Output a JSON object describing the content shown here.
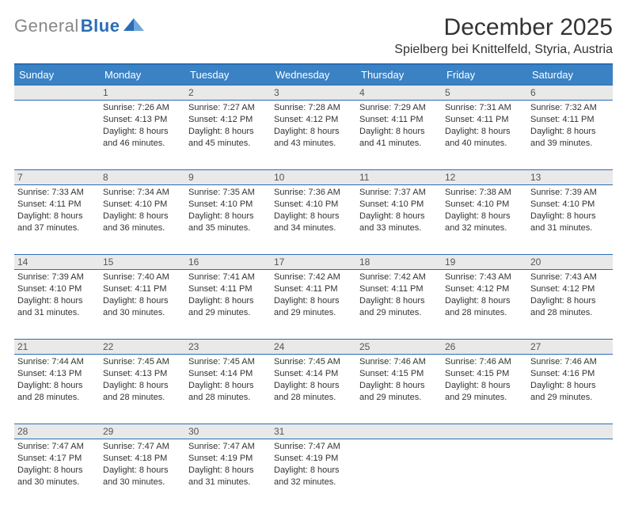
{
  "brand": {
    "part1": "General",
    "part2": "Blue"
  },
  "title": "December 2025",
  "location": "Spielberg bei Knittelfeld, Styria, Austria",
  "colors": {
    "header_bg": "#3a82c4",
    "header_border": "#2a6db5",
    "daynum_bg": "#e9e9e9",
    "text": "#333333"
  },
  "weekdays": [
    "Sunday",
    "Monday",
    "Tuesday",
    "Wednesday",
    "Thursday",
    "Friday",
    "Saturday"
  ],
  "weeks": [
    [
      null,
      {
        "n": "1",
        "sr": "Sunrise: 7:26 AM",
        "ss": "Sunset: 4:13 PM",
        "d1": "Daylight: 8 hours",
        "d2": "and 46 minutes."
      },
      {
        "n": "2",
        "sr": "Sunrise: 7:27 AM",
        "ss": "Sunset: 4:12 PM",
        "d1": "Daylight: 8 hours",
        "d2": "and 45 minutes."
      },
      {
        "n": "3",
        "sr": "Sunrise: 7:28 AM",
        "ss": "Sunset: 4:12 PM",
        "d1": "Daylight: 8 hours",
        "d2": "and 43 minutes."
      },
      {
        "n": "4",
        "sr": "Sunrise: 7:29 AM",
        "ss": "Sunset: 4:11 PM",
        "d1": "Daylight: 8 hours",
        "d2": "and 41 minutes."
      },
      {
        "n": "5",
        "sr": "Sunrise: 7:31 AM",
        "ss": "Sunset: 4:11 PM",
        "d1": "Daylight: 8 hours",
        "d2": "and 40 minutes."
      },
      {
        "n": "6",
        "sr": "Sunrise: 7:32 AM",
        "ss": "Sunset: 4:11 PM",
        "d1": "Daylight: 8 hours",
        "d2": "and 39 minutes."
      }
    ],
    [
      {
        "n": "7",
        "sr": "Sunrise: 7:33 AM",
        "ss": "Sunset: 4:11 PM",
        "d1": "Daylight: 8 hours",
        "d2": "and 37 minutes."
      },
      {
        "n": "8",
        "sr": "Sunrise: 7:34 AM",
        "ss": "Sunset: 4:10 PM",
        "d1": "Daylight: 8 hours",
        "d2": "and 36 minutes."
      },
      {
        "n": "9",
        "sr": "Sunrise: 7:35 AM",
        "ss": "Sunset: 4:10 PM",
        "d1": "Daylight: 8 hours",
        "d2": "and 35 minutes."
      },
      {
        "n": "10",
        "sr": "Sunrise: 7:36 AM",
        "ss": "Sunset: 4:10 PM",
        "d1": "Daylight: 8 hours",
        "d2": "and 34 minutes."
      },
      {
        "n": "11",
        "sr": "Sunrise: 7:37 AM",
        "ss": "Sunset: 4:10 PM",
        "d1": "Daylight: 8 hours",
        "d2": "and 33 minutes."
      },
      {
        "n": "12",
        "sr": "Sunrise: 7:38 AM",
        "ss": "Sunset: 4:10 PM",
        "d1": "Daylight: 8 hours",
        "d2": "and 32 minutes."
      },
      {
        "n": "13",
        "sr": "Sunrise: 7:39 AM",
        "ss": "Sunset: 4:10 PM",
        "d1": "Daylight: 8 hours",
        "d2": "and 31 minutes."
      }
    ],
    [
      {
        "n": "14",
        "sr": "Sunrise: 7:39 AM",
        "ss": "Sunset: 4:10 PM",
        "d1": "Daylight: 8 hours",
        "d2": "and 31 minutes."
      },
      {
        "n": "15",
        "sr": "Sunrise: 7:40 AM",
        "ss": "Sunset: 4:11 PM",
        "d1": "Daylight: 8 hours",
        "d2": "and 30 minutes."
      },
      {
        "n": "16",
        "sr": "Sunrise: 7:41 AM",
        "ss": "Sunset: 4:11 PM",
        "d1": "Daylight: 8 hours",
        "d2": "and 29 minutes."
      },
      {
        "n": "17",
        "sr": "Sunrise: 7:42 AM",
        "ss": "Sunset: 4:11 PM",
        "d1": "Daylight: 8 hours",
        "d2": "and 29 minutes."
      },
      {
        "n": "18",
        "sr": "Sunrise: 7:42 AM",
        "ss": "Sunset: 4:11 PM",
        "d1": "Daylight: 8 hours",
        "d2": "and 29 minutes."
      },
      {
        "n": "19",
        "sr": "Sunrise: 7:43 AM",
        "ss": "Sunset: 4:12 PM",
        "d1": "Daylight: 8 hours",
        "d2": "and 28 minutes."
      },
      {
        "n": "20",
        "sr": "Sunrise: 7:43 AM",
        "ss": "Sunset: 4:12 PM",
        "d1": "Daylight: 8 hours",
        "d2": "and 28 minutes."
      }
    ],
    [
      {
        "n": "21",
        "sr": "Sunrise: 7:44 AM",
        "ss": "Sunset: 4:13 PM",
        "d1": "Daylight: 8 hours",
        "d2": "and 28 minutes."
      },
      {
        "n": "22",
        "sr": "Sunrise: 7:45 AM",
        "ss": "Sunset: 4:13 PM",
        "d1": "Daylight: 8 hours",
        "d2": "and 28 minutes."
      },
      {
        "n": "23",
        "sr": "Sunrise: 7:45 AM",
        "ss": "Sunset: 4:14 PM",
        "d1": "Daylight: 8 hours",
        "d2": "and 28 minutes."
      },
      {
        "n": "24",
        "sr": "Sunrise: 7:45 AM",
        "ss": "Sunset: 4:14 PM",
        "d1": "Daylight: 8 hours",
        "d2": "and 28 minutes."
      },
      {
        "n": "25",
        "sr": "Sunrise: 7:46 AM",
        "ss": "Sunset: 4:15 PM",
        "d1": "Daylight: 8 hours",
        "d2": "and 29 minutes."
      },
      {
        "n": "26",
        "sr": "Sunrise: 7:46 AM",
        "ss": "Sunset: 4:15 PM",
        "d1": "Daylight: 8 hours",
        "d2": "and 29 minutes."
      },
      {
        "n": "27",
        "sr": "Sunrise: 7:46 AM",
        "ss": "Sunset: 4:16 PM",
        "d1": "Daylight: 8 hours",
        "d2": "and 29 minutes."
      }
    ],
    [
      {
        "n": "28",
        "sr": "Sunrise: 7:47 AM",
        "ss": "Sunset: 4:17 PM",
        "d1": "Daylight: 8 hours",
        "d2": "and 30 minutes."
      },
      {
        "n": "29",
        "sr": "Sunrise: 7:47 AM",
        "ss": "Sunset: 4:18 PM",
        "d1": "Daylight: 8 hours",
        "d2": "and 30 minutes."
      },
      {
        "n": "30",
        "sr": "Sunrise: 7:47 AM",
        "ss": "Sunset: 4:19 PM",
        "d1": "Daylight: 8 hours",
        "d2": "and 31 minutes."
      },
      {
        "n": "31",
        "sr": "Sunrise: 7:47 AM",
        "ss": "Sunset: 4:19 PM",
        "d1": "Daylight: 8 hours",
        "d2": "and 32 minutes."
      },
      null,
      null,
      null
    ]
  ]
}
